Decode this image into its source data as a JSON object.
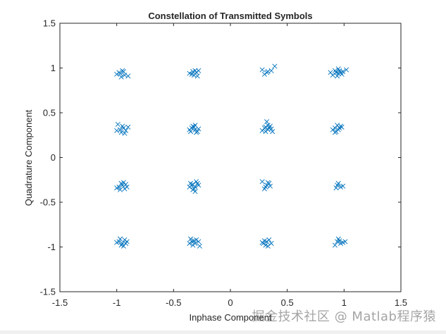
{
  "chart_data": {
    "type": "scatter",
    "title": "Constellation of Transmitted Symbols",
    "xlabel": "Inphase Component",
    "ylabel": "Quadrature Component",
    "xlim": [
      -1.5,
      1.5
    ],
    "ylim": [
      -1.5,
      1.5
    ],
    "xticks": [
      "-1.5",
      "-1",
      "-0.5",
      "0",
      "0.5",
      "1",
      "1.5"
    ],
    "yticks": [
      "-1.5",
      "-1",
      "-0.5",
      "0",
      "0.5",
      "1",
      "1.5"
    ],
    "grid": false,
    "marker": "x",
    "marker_color": "#0072BD",
    "series": [
      {
        "points": [
          [
            -0.98,
            0.95
          ],
          [
            -0.95,
            0.97
          ],
          [
            -0.93,
            0.92
          ],
          [
            -0.96,
            0.9
          ],
          [
            -1.0,
            0.93
          ],
          [
            -0.9,
            0.91
          ],
          [
            -0.94,
            0.96
          ],
          [
            -0.97,
            0.94
          ],
          [
            -0.34,
            0.93
          ],
          [
            -0.31,
            0.97
          ],
          [
            -0.29,
            0.91
          ],
          [
            -0.33,
            0.96
          ],
          [
            -0.28,
            0.97
          ],
          [
            -0.36,
            0.94
          ],
          [
            -0.32,
            0.92
          ],
          [
            -0.3,
            0.95
          ],
          [
            0.28,
            0.98
          ],
          [
            0.32,
            0.95
          ],
          [
            0.3,
            0.93
          ],
          [
            0.36,
            0.97
          ],
          [
            0.39,
            1.02
          ],
          [
            0.33,
            0.96
          ],
          [
            0.93,
            0.95
          ],
          [
            0.96,
            0.97
          ],
          [
            0.98,
            0.93
          ],
          [
            0.9,
            0.92
          ],
          [
            0.95,
            0.99
          ],
          [
            1.02,
            0.98
          ],
          [
            0.92,
            0.97
          ],
          [
            0.97,
            0.95
          ],
          [
            0.94,
            0.91
          ],
          [
            0.99,
            0.96
          ],
          [
            0.95,
            0.94
          ],
          [
            0.88,
            0.95
          ],
          [
            -0.99,
            0.37
          ],
          [
            -0.97,
            0.31
          ],
          [
            -0.94,
            0.33
          ],
          [
            -0.92,
            0.3
          ],
          [
            -0.96,
            0.28
          ],
          [
            -0.9,
            0.34
          ],
          [
            -1.0,
            0.3
          ],
          [
            -0.95,
            0.35
          ],
          [
            -0.93,
            0.27
          ],
          [
            -0.34,
            0.33
          ],
          [
            -0.31,
            0.31
          ],
          [
            -0.29,
            0.29
          ],
          [
            -0.33,
            0.35
          ],
          [
            -0.3,
            0.28
          ],
          [
            -0.36,
            0.31
          ],
          [
            -0.32,
            0.34
          ],
          [
            -0.28,
            0.32
          ],
          [
            -0.35,
            0.29
          ],
          [
            -0.31,
            0.36
          ],
          [
            0.3,
            0.33
          ],
          [
            0.33,
            0.31
          ],
          [
            0.35,
            0.35
          ],
          [
            0.31,
            0.29
          ],
          [
            0.34,
            0.33
          ],
          [
            0.28,
            0.3
          ],
          [
            0.36,
            0.32
          ],
          [
            0.32,
            0.4
          ],
          [
            0.37,
            0.29
          ],
          [
            0.33,
            0.36
          ],
          [
            0.31,
            0.34
          ],
          [
            0.92,
            0.33
          ],
          [
            0.95,
            0.31
          ],
          [
            0.97,
            0.35
          ],
          [
            0.93,
            0.29
          ],
          [
            0.96,
            0.33
          ],
          [
            0.9,
            0.31
          ],
          [
            0.98,
            0.34
          ],
          [
            0.94,
            0.36
          ],
          [
            0.92,
            0.28
          ],
          [
            -0.98,
            -0.33
          ],
          [
            -0.95,
            -0.31
          ],
          [
            -0.93,
            -0.35
          ],
          [
            -0.96,
            -0.29
          ],
          [
            -0.91,
            -0.33
          ],
          [
            -1.0,
            -0.34
          ],
          [
            -0.94,
            -0.28
          ],
          [
            -0.97,
            -0.36
          ],
          [
            -0.92,
            -0.3
          ],
          [
            -0.34,
            -0.31
          ],
          [
            -0.31,
            -0.33
          ],
          [
            -0.29,
            -0.29
          ],
          [
            -0.33,
            -0.36
          ],
          [
            -0.3,
            -0.27
          ],
          [
            -0.36,
            -0.33
          ],
          [
            -0.32,
            -0.35
          ],
          [
            -0.28,
            -0.31
          ],
          [
            -0.35,
            -0.29
          ],
          [
            -0.31,
            -0.38
          ],
          [
            -0.33,
            -0.3
          ],
          [
            0.28,
            -0.27
          ],
          [
            0.32,
            -0.31
          ],
          [
            0.31,
            -0.33
          ],
          [
            0.34,
            -0.29
          ],
          [
            0.3,
            -0.35
          ],
          [
            0.35,
            -0.32
          ],
          [
            0.33,
            -0.28
          ],
          [
            0.94,
            -0.31
          ],
          [
            0.97,
            -0.33
          ],
          [
            0.95,
            -0.29
          ],
          [
            0.99,
            -0.32
          ],
          [
            0.93,
            -0.34
          ],
          [
            -0.98,
            -0.94
          ],
          [
            -0.95,
            -0.96
          ],
          [
            -0.93,
            -0.92
          ],
          [
            -0.96,
            -0.98
          ],
          [
            -0.91,
            -0.94
          ],
          [
            -1.0,
            -0.95
          ],
          [
            -0.94,
            -0.99
          ],
          [
            -0.97,
            -0.91
          ],
          [
            -0.92,
            -0.96
          ],
          [
            -0.34,
            -0.94
          ],
          [
            -0.31,
            -0.96
          ],
          [
            -0.3,
            -0.92
          ],
          [
            -0.33,
            -0.98
          ],
          [
            -0.28,
            -0.94
          ],
          [
            -0.36,
            -0.96
          ],
          [
            -0.32,
            -0.93
          ],
          [
            -0.27,
            -0.99
          ],
          [
            -0.35,
            -0.91
          ],
          [
            0.29,
            -0.96
          ],
          [
            0.32,
            -0.94
          ],
          [
            0.31,
            -0.98
          ],
          [
            0.34,
            -0.92
          ],
          [
            0.3,
            -0.93
          ],
          [
            0.36,
            -0.96
          ],
          [
            0.33,
            -0.99
          ],
          [
            0.28,
            -0.95
          ],
          [
            0.94,
            -0.94
          ],
          [
            0.97,
            -0.96
          ],
          [
            0.95,
            -0.91
          ],
          [
            0.99,
            -0.95
          ],
          [
            0.92,
            -0.98
          ],
          [
            0.96,
            -0.93
          ],
          [
            1.01,
            -0.94
          ]
        ]
      }
    ]
  },
  "watermark": "掘金技术社区 @ Matlab程序猿"
}
